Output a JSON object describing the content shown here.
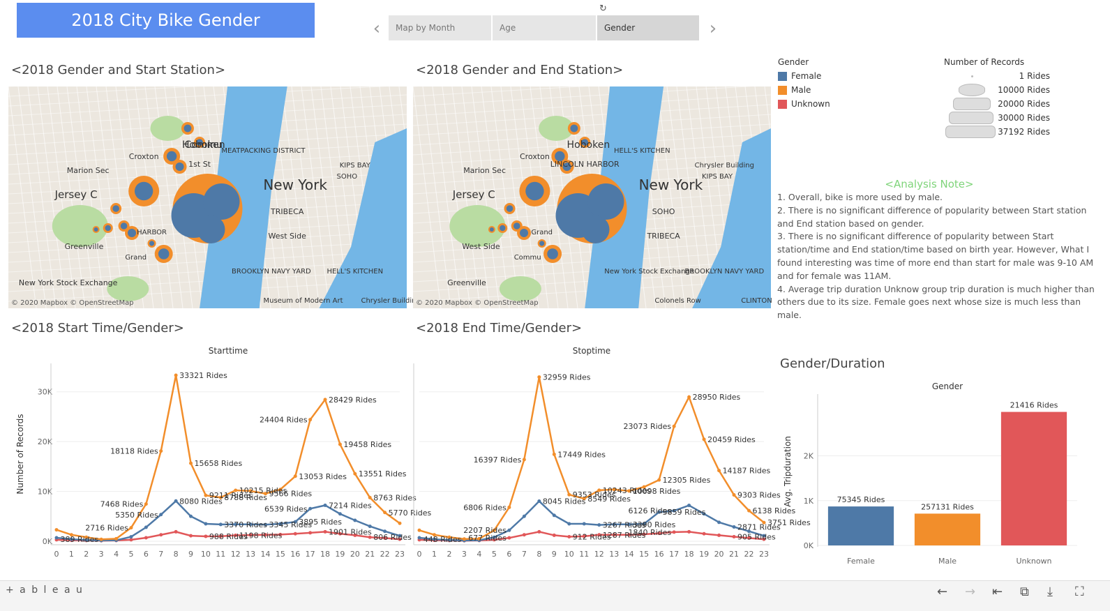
{
  "header": {
    "title": "2018 City Bike Gender",
    "tabs": [
      {
        "label": "Map by Month",
        "active": false
      },
      {
        "label": "Age",
        "active": false
      },
      {
        "label": "Gender",
        "active": true
      }
    ]
  },
  "maps": {
    "start_title": "<2018 Gender and Start Station>",
    "end_title": "<2018 Gender and End Station>",
    "attribution": "© 2020 Mapbox © OpenStreetMap",
    "start_labels": [
      "Hoboken",
      "New York",
      "Jersey C",
      "Marion Sec",
      "Croxton",
      "1st St",
      "MEATPACKING DISTRICT",
      "KIPS BAY",
      "SOHO",
      "TRIBECA",
      "West Side",
      "Greenville",
      "New York Stock Exchange",
      "BROOKLYN NAVY YARD",
      "HELL'S KITCHEN",
      "Museum of Modern Art",
      "Chrysler Building",
      "HARBOR",
      "Grand",
      "Commu"
    ],
    "end_labels": [
      "Hoboken",
      "New York",
      "Jersey C",
      "Marion Sec",
      "Croxton",
      "LINCOLN HARBOR",
      "HELL'S KITCHEN",
      "Chrysler Building",
      "KIPS BAY",
      "SOHO",
      "TRIBECA",
      "West Side",
      "Greenville",
      "New York Stock Exchange",
      "BROOKLYN NAVY YARD",
      "Colonels Row",
      "CLINTON",
      "Grand",
      "Commu"
    ]
  },
  "legend": {
    "gender_title": "Gender",
    "genders": [
      {
        "label": "Female",
        "color": "#4e79a7"
      },
      {
        "label": "Male",
        "color": "#f28e2b"
      },
      {
        "label": "Unknown",
        "color": "#e15759"
      }
    ],
    "size_title": "Number of Records",
    "sizes": [
      "1 Rides",
      "10000 Rides",
      "20000 Rides",
      "30000 Rides",
      "37192 Rides"
    ]
  },
  "note": {
    "title": "<Analysis Note>",
    "lines": [
      "1. Overall, bike is more used by male.",
      "2. There is no significant difference of popularity between Start station",
      "and End station based on gender.",
      "3. There is no significant difference of popularity between Start",
      "station/time and End station/time based on birth year. However, What I",
      "found interesting was time of more end than start for male was 9-10 AM",
      "and for female was 11AM.",
      "4. Average trip duration Unknow group trip duration is much higher than",
      "others due to its size. Female goes next whose size is much less than",
      "male."
    ]
  },
  "charts": {
    "start_title": "<2018 Start Time/Gender>",
    "end_title": "<2018 End Time/Gender>",
    "duration_title": "Gender/Duration"
  },
  "chart_data": [
    {
      "type": "line",
      "title": "Starttime",
      "ylabel": "Number of Records",
      "x": [
        0,
        1,
        2,
        3,
        4,
        5,
        6,
        7,
        8,
        9,
        10,
        11,
        12,
        13,
        14,
        15,
        16,
        17,
        18,
        19,
        20,
        21,
        22,
        23
      ],
      "ylim": [
        0,
        35000
      ],
      "yticks": [
        "0K",
        "10K",
        "20K",
        "30K"
      ],
      "series": [
        {
          "name": "Male",
          "color": "#f28e2b",
          "values": [
            2300,
            1300,
            800,
            389,
            500,
            2716,
            7468,
            18118,
            33321,
            15658,
            9211,
            8788,
            10215,
            10100,
            9566,
            10400,
            13053,
            24404,
            28429,
            19458,
            13551,
            8763,
            5770,
            3600
          ]
        },
        {
          "name": "Female",
          "color": "#4e79a7",
          "values": [
            700,
            400,
            250,
            150,
            200,
            900,
            2800,
            5350,
            8080,
            5000,
            3500,
            3370,
            3400,
            3400,
            3345,
            3500,
            3895,
            6539,
            7214,
            5500,
            4200,
            3000,
            2000,
            1100
          ]
        },
        {
          "name": "Unknown",
          "color": "#e15759",
          "values": [
            300,
            200,
            150,
            100,
            150,
            300,
            700,
            1300,
            1900,
            1100,
            988,
            1000,
            1198,
            1250,
            1300,
            1350,
            1500,
            1700,
            1901,
            1500,
            1200,
            806,
            650,
            400
          ]
        }
      ],
      "labels": [
        "389 Rides",
        "2716 Rides",
        "7468 Rides",
        "18118 Rides",
        "33321 Rides",
        "15658 Rides",
        "9211 Rides",
        "8788 Rides",
        "10215 Rides",
        "9566 Rides",
        "13053 Rides",
        "24404 Rides",
        "28429 Rides",
        "19458 Rides",
        "13551 Rides",
        "8763 Rides",
        "5770 Rides",
        "5350 Rides",
        "8080 Rides",
        "3370 Rides",
        "3345 Rides",
        "3895 Rides",
        "6539 Rides",
        "7214 Rides",
        "988 Rides",
        "1198 Rides",
        "1901 Rides",
        "806 Rides"
      ]
    },
    {
      "type": "line",
      "title": "Stoptime",
      "ylabel": "",
      "x": [
        0,
        1,
        2,
        3,
        4,
        5,
        6,
        7,
        8,
        9,
        10,
        11,
        12,
        13,
        14,
        15,
        16,
        17,
        18,
        19,
        20,
        21,
        22,
        23
      ],
      "ylim": [
        0,
        35000
      ],
      "series": [
        {
          "name": "Male",
          "color": "#f28e2b",
          "values": [
            2200,
            1300,
            800,
            448,
            500,
            2200,
            6806,
            16397,
            32959,
            17449,
            9353,
            8549,
            10243,
            10400,
            10098,
            10900,
            12305,
            23073,
            28950,
            20459,
            14187,
            9303,
            6138,
            3751
          ]
        },
        {
          "name": "Female",
          "color": "#4e79a7",
          "values": [
            700,
            400,
            250,
            150,
            200,
            800,
            2207,
            5000,
            8045,
            5200,
            3500,
            3500,
            3267,
            3400,
            3390,
            3500,
            5859,
            6126,
            7200,
            5500,
            3800,
            2871,
            2000,
            1100
          ]
        },
        {
          "name": "Unknown",
          "color": "#e15759",
          "values": [
            300,
            200,
            150,
            100,
            150,
            300,
            677,
            1300,
            1900,
            1200,
            912,
            1000,
            1287,
            1300,
            1300,
            1400,
            1600,
            1840,
            1900,
            1500,
            1200,
            905,
            650,
            400
          ]
        }
      ],
      "labels": [
        "448 Rides",
        "6806 Rides",
        "16397 Rides",
        "32959 Rides",
        "17449 Rides",
        "8549 Rides",
        "9353 Rides",
        "10243 Rides",
        "10098 Rides",
        "12305 Rides",
        "23073 Rides",
        "28950 Rides",
        "20459 Rides",
        "14187 Rides",
        "9303 Rides",
        "6138 Rides",
        "3751 Rides",
        "2207 Rides",
        "8045 Rides",
        "3267 Rides",
        "3390 Rides",
        "6126 Rides",
        "5859 Rides",
        "2871 Rides",
        "677 Rides",
        "912 Rides",
        "1287 Rides",
        "1840 Rides",
        "905 Rides"
      ]
    },
    {
      "type": "bar",
      "title": "Gender",
      "ylabel": "Avg. Tripduration",
      "categories": [
        "Female",
        "Male",
        "Unknown"
      ],
      "values": [
        870,
        710,
        2980
      ],
      "colors": [
        "#4e79a7",
        "#f28e2b",
        "#e15759"
      ],
      "ylim": [
        0,
        3300
      ],
      "yticks": [
        "0K",
        "1K",
        "2K"
      ],
      "labels": [
        "75345 Rides",
        "257131 Rides",
        "21416 Rides"
      ]
    }
  ],
  "footer": {
    "logo": "+ a b l e a u"
  }
}
